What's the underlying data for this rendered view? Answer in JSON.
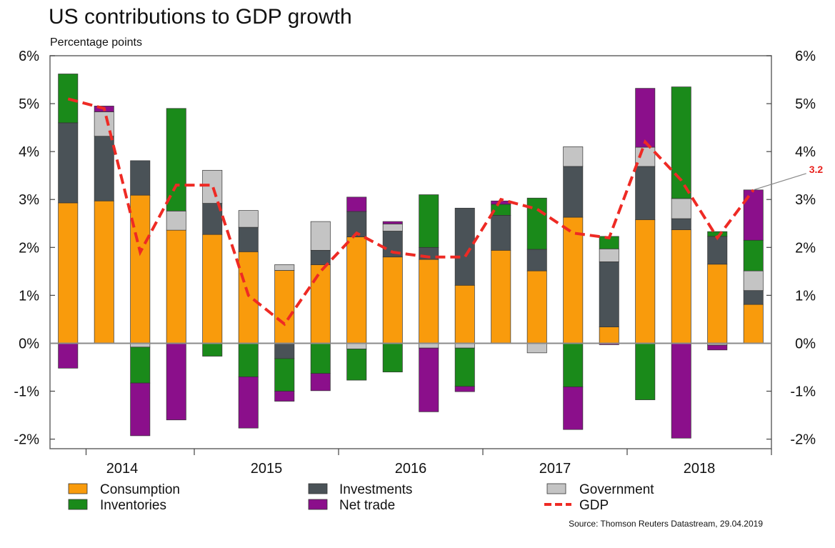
{
  "chart_data": {
    "type": "bar",
    "stacked": true,
    "title": "US contributions to GDP growth",
    "subtitle": "Percentage points",
    "source": "Source: Thomson Reuters Datastream, 29.04.2019",
    "y_ticks": [
      "-2%",
      "-1%",
      "0%",
      "1%",
      "2%",
      "3%",
      "4%",
      "5%",
      "6%"
    ],
    "ylim": [
      -2.2,
      6
    ],
    "year_labels": [
      "2014",
      "2015",
      "2016",
      "2017",
      "2018"
    ],
    "year_label_quarter_index": [
      1.5,
      5.5,
      9.5,
      13.5,
      17.5
    ],
    "year_boundaries": [
      0.5,
      3.5,
      7.5,
      11.5,
      15.5,
      19.5
    ],
    "annotation": {
      "text": "3.2",
      "quarter_index": 19,
      "value": 3.2
    },
    "colors": {
      "consumption": "#f99b0c",
      "investments": "#4a5257",
      "government": "#c4c4c4",
      "inventories": "#1a8a1a",
      "net_trade": "#8b0f8b",
      "gdp": "#ee2a24"
    },
    "legend": {
      "consumption": "Consumption",
      "investments": "Investments",
      "government": "Government",
      "inventories": "Inventories",
      "net_trade": "Net trade",
      "gdp": "GDP"
    },
    "series": [
      {
        "key": "consumption",
        "values": [
          2.93,
          2.97,
          3.09,
          2.36,
          2.27,
          1.91,
          1.52,
          1.64,
          2.22,
          1.8,
          1.75,
          1.21,
          1.94,
          1.51,
          2.63,
          0.34,
          2.58,
          2.37,
          1.65,
          0.81
        ]
      },
      {
        "key": "investments",
        "values": [
          1.67,
          1.35,
          0.72,
          0,
          0.65,
          0.51,
          -0.32,
          0.3,
          0.53,
          0.54,
          0.25,
          1.61,
          0.73,
          0.45,
          1.06,
          1.36,
          1.11,
          0.23,
          0.58,
          0.29
        ]
      },
      {
        "key": "government",
        "values": [
          0,
          0.51,
          -0.08,
          0.4,
          0.69,
          0.35,
          0.12,
          0.6,
          -0.12,
          0.15,
          -0.1,
          -0.1,
          0,
          -0.2,
          0.41,
          0.27,
          0.4,
          0.42,
          -0.04,
          0.41
        ]
      },
      {
        "key": "inventories",
        "values": [
          1.02,
          0,
          -0.75,
          2.14,
          -0.27,
          -0.7,
          -0.68,
          -0.63,
          -0.65,
          -0.6,
          1.1,
          -0.8,
          0.23,
          1.07,
          -0.91,
          0.26,
          -1.18,
          2.33,
          0.1,
          0.64
        ]
      },
      {
        "key": "net_trade",
        "values": [
          -0.52,
          0.12,
          -1.1,
          -1.6,
          0,
          -1.07,
          -0.21,
          -0.36,
          0.3,
          0.05,
          -1.33,
          -0.11,
          0.07,
          0,
          -0.89,
          -0.03,
          1.23,
          -1.98,
          -0.1,
          1.05
        ]
      }
    ],
    "gdp_series": {
      "key": "gdp",
      "values": [
        5.1,
        4.9,
        1.9,
        3.3,
        3.3,
        1.0,
        0.4,
        1.5,
        2.3,
        1.9,
        1.8,
        1.8,
        3.0,
        2.8,
        2.3,
        2.2,
        4.2,
        3.4,
        2.2,
        3.2
      ]
    }
  }
}
